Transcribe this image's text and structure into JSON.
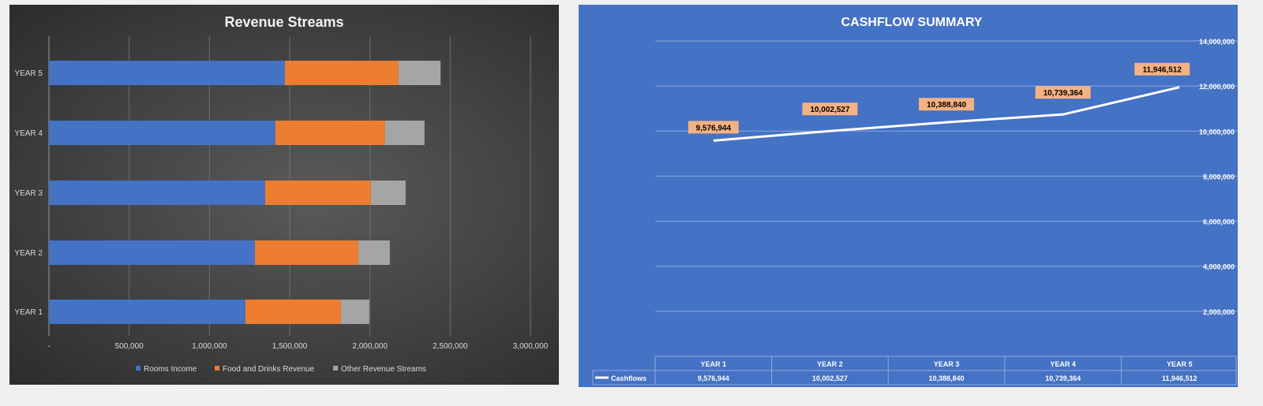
{
  "chart_data": [
    {
      "type": "bar",
      "orientation": "horizontal",
      "stacked": true,
      "title": "Revenue Streams",
      "categories": [
        "YEAR 1",
        "YEAR 2",
        "YEAR 3",
        "YEAR 4",
        "YEAR 5"
      ],
      "series": [
        {
          "name": "Rooms Income",
          "color": "#4472c4",
          "values": [
            1224000,
            1283000,
            1347000,
            1410000,
            1470000
          ]
        },
        {
          "name": "Food and Drinks Revenue",
          "color": "#ed7d31",
          "values": [
            595000,
            644000,
            659000,
            684000,
            708000
          ]
        },
        {
          "name": "Other Revenue Streams",
          "color": "#a5a5a5",
          "values": [
            177000,
            197000,
            216000,
            246000,
            262000
          ]
        }
      ],
      "xlim": [
        0,
        3000000
      ],
      "xticks": [
        "-",
        "500,000",
        "1,000,000",
        "1,500,000",
        "2,000,000",
        "2,500,000",
        "3,000,000"
      ],
      "grid": true,
      "legend": "bottom"
    },
    {
      "type": "line",
      "title": "CASHFLOW SUMMARY",
      "categories": [
        "YEAR 1",
        "YEAR 2",
        "YEAR 3",
        "YEAR 4",
        "YEAR 5"
      ],
      "series": [
        {
          "name": "Cashflows",
          "color": "#ffffff",
          "values": [
            9576944,
            10002527,
            10388840,
            10739364,
            11946512
          ],
          "labels": [
            "9,576,944",
            "10,002,527",
            "10,388,840",
            "10,739,364",
            "11,946,512"
          ]
        }
      ],
      "ylim": [
        0,
        14000000
      ],
      "yticks": [
        "2,000,000",
        "4,000,000",
        "6,000,000",
        "8,000,000",
        "10,000,000",
        "12,000,000",
        "14,000,000"
      ],
      "y_axis_side": "right",
      "grid": true,
      "data_table": true,
      "label_bg": "#f4b183"
    }
  ]
}
